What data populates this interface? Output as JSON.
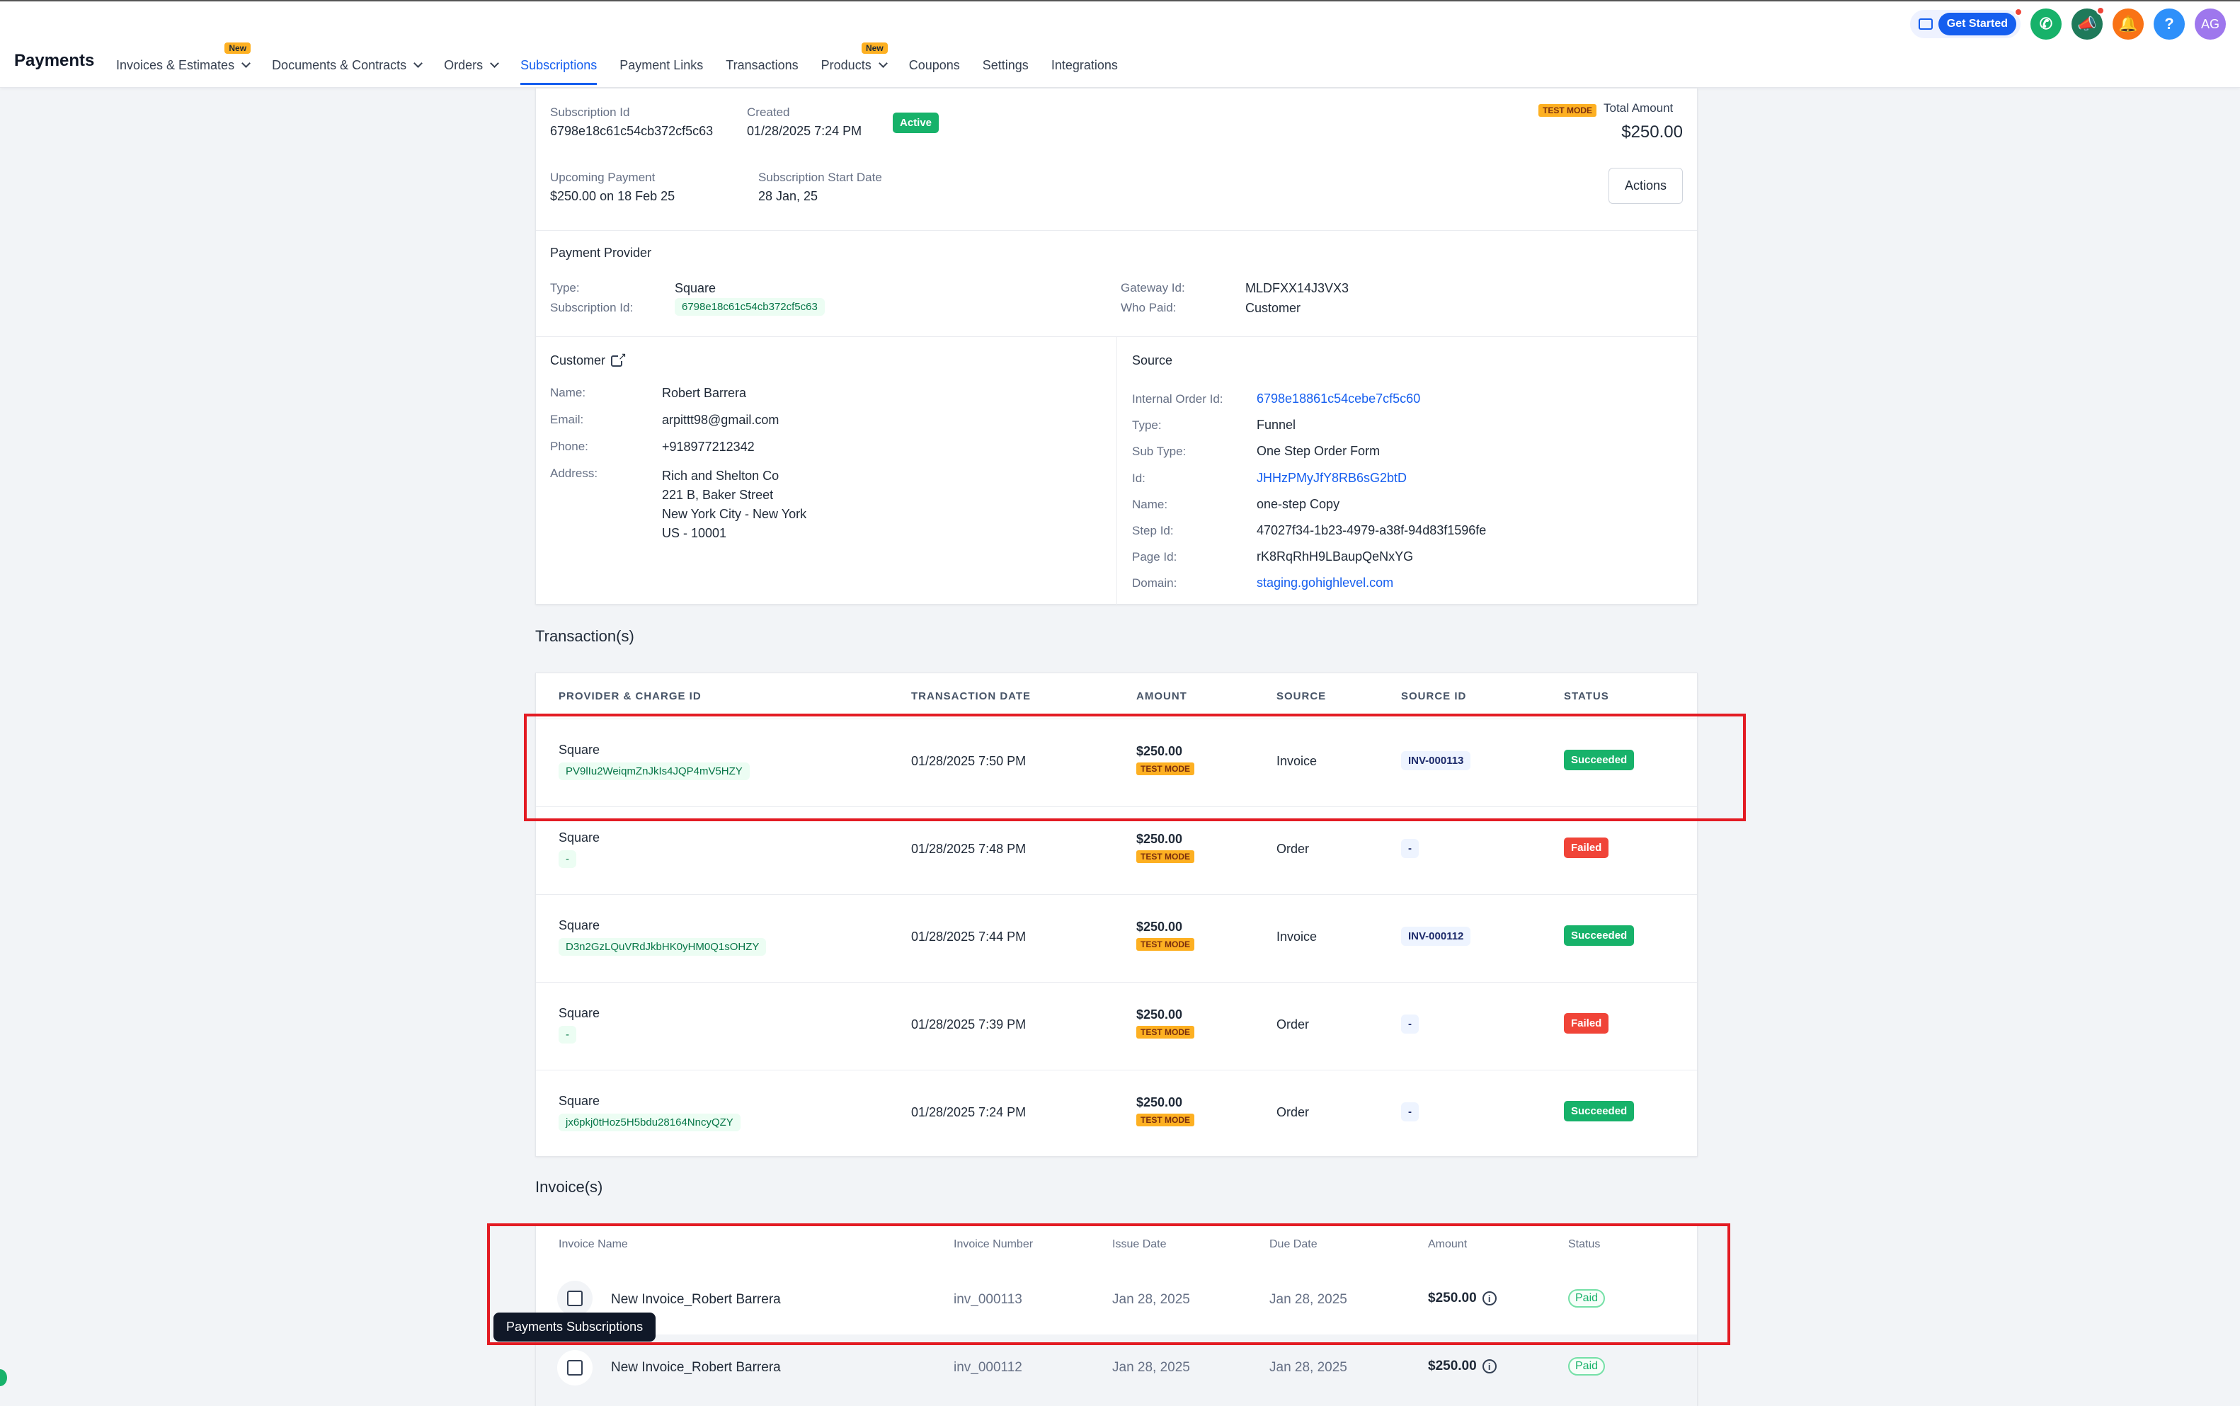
{
  "app": {
    "title": "Payments"
  },
  "nav": {
    "items": [
      {
        "label": "Invoices & Estimates",
        "badge": "New",
        "dropdown": true
      },
      {
        "label": "Documents & Contracts",
        "dropdown": true
      },
      {
        "label": "Orders",
        "dropdown": true
      },
      {
        "label": "Subscriptions",
        "active": true
      },
      {
        "label": "Payment Links"
      },
      {
        "label": "Transactions"
      },
      {
        "label": "Products",
        "badge": "New",
        "dropdown": true
      },
      {
        "label": "Coupons"
      },
      {
        "label": "Settings"
      },
      {
        "label": "Integrations"
      }
    ]
  },
  "header_actions": {
    "get_started": "Get Started",
    "help": "?",
    "avatar": "AG"
  },
  "subscription": {
    "id_label": "Subscription Id",
    "id": "6798e18c61c54cb372cf5c63",
    "created_label": "Created",
    "created": "01/28/2025 7:24 PM",
    "status": "Active",
    "test_mode": "TEST MODE",
    "total_label": "Total Amount",
    "total": "$250.00",
    "upcoming_label": "Upcoming Payment",
    "upcoming": "$250.00 on 18 Feb 25",
    "start_label": "Subscription Start Date",
    "start": "28 Jan, 25",
    "actions_button": "Actions"
  },
  "provider": {
    "title": "Payment Provider",
    "type_label": "Type:",
    "type": "Square",
    "sub_id_label": "Subscription Id:",
    "sub_id": "6798e18c61c54cb372cf5c63",
    "gateway_label": "Gateway Id:",
    "gateway": "MLDFXX14J3VX3",
    "who_paid_label": "Who Paid:",
    "who_paid": "Customer"
  },
  "customer": {
    "title": "Customer",
    "name_label": "Name:",
    "name": "Robert Barrera",
    "email_label": "Email:",
    "email": "arpittt98@gmail.com",
    "phone_label": "Phone:",
    "phone": "+918977212342",
    "address_label": "Address:",
    "address_lines": [
      "Rich and Shelton Co",
      "221 B, Baker Street",
      "New York City - New York",
      "US - 10001"
    ]
  },
  "source": {
    "title": "Source",
    "fields": [
      {
        "label": "Internal Order Id:",
        "value": "6798e18861c54cebe7cf5c60",
        "link": true
      },
      {
        "label": "Type:",
        "value": "Funnel",
        "link": false
      },
      {
        "label": "Sub Type:",
        "value": "One Step Order Form",
        "link": false
      },
      {
        "label": "Id:",
        "value": "JHHzPMyJfY8RB6sG2btD",
        "link": true
      },
      {
        "label": "Name:",
        "value": "one-step Copy",
        "link": false
      },
      {
        "label": "Step Id:",
        "value": "47027f34-1b23-4979-a38f-94d83f1596fe",
        "link": false
      },
      {
        "label": "Page Id:",
        "value": "rK8RqRhH9LBaupQeNxYG",
        "link": false
      },
      {
        "label": "Domain:",
        "value": "staging.gohighlevel.com",
        "link": true
      }
    ]
  },
  "transactions": {
    "title": "Transaction(s)",
    "headers": [
      "PROVIDER & CHARGE ID",
      "TRANSACTION DATE",
      "AMOUNT",
      "SOURCE",
      "SOURCE ID",
      "STATUS"
    ],
    "rows": [
      {
        "provider": "Square",
        "charge_id": "PV9lIu2WeiqmZnJkIs4JQP4mV5HZY",
        "date": "01/28/2025 7:50 PM",
        "amount": "$250.00",
        "mode": "TEST MODE",
        "source": "Invoice",
        "source_id": "INV-000113",
        "status": "Succeeded"
      },
      {
        "provider": "Square",
        "charge_id": "-",
        "date": "01/28/2025 7:48 PM",
        "amount": "$250.00",
        "mode": "TEST MODE",
        "source": "Order",
        "source_id": "-",
        "status": "Failed"
      },
      {
        "provider": "Square",
        "charge_id": "D3n2GzLQuVRdJkbHK0yHM0Q1sOHZY",
        "date": "01/28/2025 7:44 PM",
        "amount": "$250.00",
        "mode": "TEST MODE",
        "source": "Invoice",
        "source_id": "INV-000112",
        "status": "Succeeded"
      },
      {
        "provider": "Square",
        "charge_id": "-",
        "date": "01/28/2025 7:39 PM",
        "amount": "$250.00",
        "mode": "TEST MODE",
        "source": "Order",
        "source_id": "-",
        "status": "Failed"
      },
      {
        "provider": "Square",
        "charge_id": "jx6pkj0tHoz5H5bdu28164NncyQZY",
        "date": "01/28/2025 7:24 PM",
        "amount": "$250.00",
        "mode": "TEST MODE",
        "source": "Order",
        "source_id": "-",
        "status": "Succeeded"
      }
    ]
  },
  "invoices": {
    "title": "Invoice(s)",
    "headers": [
      "Invoice Name",
      "Invoice Number",
      "Issue Date",
      "Due Date",
      "Amount",
      "Status"
    ],
    "rows": [
      {
        "name": "New Invoice_Robert Barrera",
        "number": "inv_000113",
        "issue": "Jan 28, 2025",
        "due": "Jan 28, 2025",
        "amount": "$250.00",
        "status": "Paid"
      },
      {
        "name": "New Invoice_Robert Barrera",
        "number": "inv_000112",
        "issue": "Jan 28, 2025",
        "due": "Jan 28, 2025",
        "amount": "$250.00",
        "status": "Paid"
      }
    ]
  },
  "tooltip": {
    "text": "Payments Subscriptions"
  },
  "colors": {
    "accent": "#155eef",
    "success": "#17b26a",
    "danger": "#f04438",
    "highlight": "#e31b23"
  }
}
